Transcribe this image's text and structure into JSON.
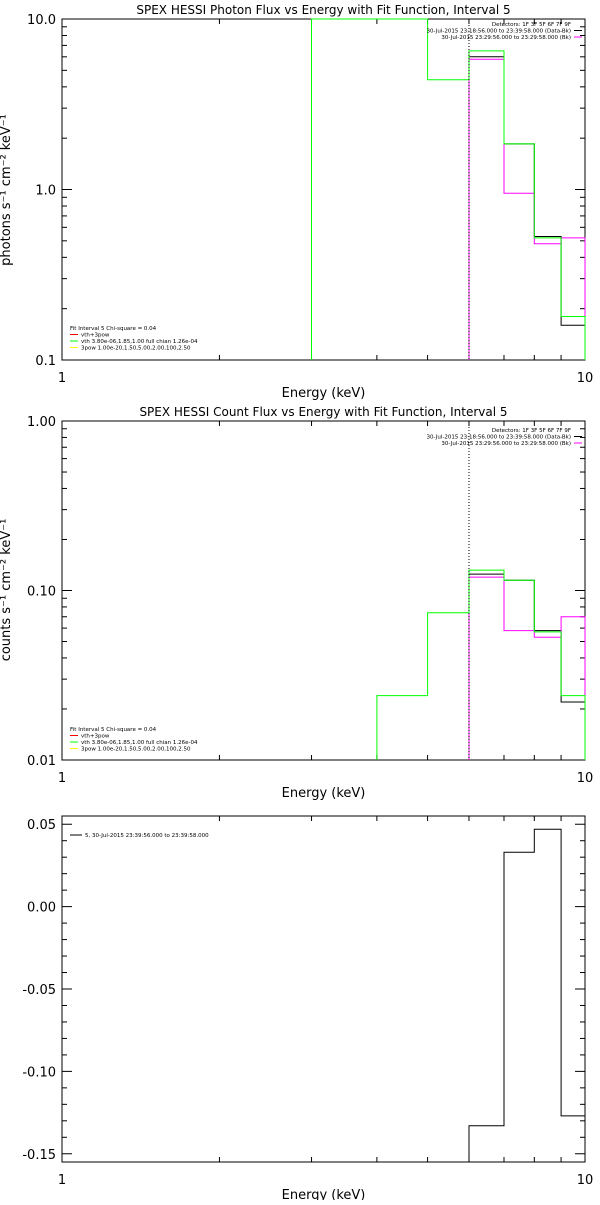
{
  "chart_data": [
    {
      "type": "line",
      "title": "SPEX HESSI Photon Flux vs Energy with Fit Function, Interval 5",
      "xlabel": "Energy (keV)",
      "ylabel": "photons s⁻¹ cm⁻² keV⁻¹",
      "xscale": "log",
      "yscale": "log",
      "xlim": [
        1,
        10
      ],
      "ylim": [
        0.1,
        10
      ],
      "x_ticks": [
        "1",
        "10"
      ],
      "y_ticks": [
        {
          "v": 0.1,
          "label": "0.1"
        },
        {
          "v": 1,
          "label": "1.0"
        },
        {
          "v": 10,
          "label": "10.0"
        }
      ],
      "vline": 6.0,
      "legend_top": [
        {
          "text": "Detectors: 1F 3F 5F 6F 7F 9F",
          "color": null
        },
        {
          "text": "30-Jul-2015 23:18:56.000 to 23:39:58.000 (Data-Bk)",
          "color": "#000000"
        },
        {
          "text": "30-Jul-2015 23:29:56.000 to 23:29:58.000 (Bk)",
          "color": "#ff00ff"
        }
      ],
      "legend_bottom": [
        {
          "text": "Fit Interval 5   Chi-square = 0.04",
          "color": null
        },
        {
          "text": "vth+3pow",
          "color": "#ff0000"
        },
        {
          "text": "vth 3.80e-06,1.85,1.00  full chian 1.26e-04",
          "color": "#00ff00"
        },
        {
          "text": "3pow 1.00e-20,1.50,5.00,2.00,100,2.50",
          "color": "#ffff00"
        }
      ],
      "series": [
        {
          "color": "#000000",
          "edges": [
            6.0,
            7.0,
            8.0,
            9.0,
            10.0
          ],
          "values": [
            6.0,
            1.85,
            0.53,
            0.16
          ]
        },
        {
          "color": "#ff00ff",
          "edges": [
            6.0,
            7.0,
            8.0,
            9.0,
            10.0
          ],
          "values": [
            5.8,
            0.95,
            0.48,
            0.52
          ]
        },
        {
          "color": "#00ff00",
          "edges": [
            3.0,
            5.0,
            6.0,
            7.0,
            8.0,
            9.0,
            10.0
          ],
          "values": [
            10.0,
            4.4,
            6.5,
            1.85,
            0.52,
            0.18
          ]
        }
      ]
    },
    {
      "type": "line",
      "title": "SPEX HESSI Count Flux vs Energy with Fit Function, Interval 5",
      "xlabel": "Energy (keV)",
      "ylabel": "counts s⁻¹ cm⁻² keV⁻¹",
      "xscale": "log",
      "yscale": "log",
      "xlim": [
        1,
        10
      ],
      "ylim": [
        0.01,
        1
      ],
      "x_ticks": [
        "1",
        "10"
      ],
      "y_ticks": [
        {
          "v": 0.01,
          "label": "0.01"
        },
        {
          "v": 0.1,
          "label": "0.10"
        },
        {
          "v": 1,
          "label": "1.00"
        }
      ],
      "vline": 6.0,
      "legend_top": [
        {
          "text": "Detectors: 1F 3F 5F 6F 7F 9F",
          "color": null
        },
        {
          "text": "30-Jul-2015 23:18:56.000 to 23:39:58.000 (Data-Bk)",
          "color": "#000000"
        },
        {
          "text": "30-Jul-2015 23:29:56.000 to 23:29:58.000 (Bk)",
          "color": "#ff00ff"
        }
      ],
      "legend_bottom": [
        {
          "text": "Fit Interval 5   Chi-square = 0.04",
          "color": null
        },
        {
          "text": "vth+3pow",
          "color": "#ff0000"
        },
        {
          "text": "vth 3.80e-06,1.85,1.00  full chian 1.26e-04",
          "color": "#00ff00"
        },
        {
          "text": "3pow 1.00e-20,1.50,5.00,2.00,100,2.50",
          "color": "#ffff00"
        }
      ],
      "series": [
        {
          "color": "#000000",
          "edges": [
            6.0,
            7.0,
            8.0,
            9.0,
            10.0
          ],
          "values": [
            0.125,
            0.115,
            0.058,
            0.022
          ]
        },
        {
          "color": "#ff00ff",
          "edges": [
            6.0,
            7.0,
            8.0,
            9.0,
            10.0
          ],
          "values": [
            0.12,
            0.058,
            0.053,
            0.07
          ]
        },
        {
          "color": "#00ff00",
          "edges": [
            4.0,
            5.0,
            6.0,
            7.0,
            8.0,
            9.0,
            10.0
          ],
          "values": [
            0.024,
            0.074,
            0.132,
            0.115,
            0.057,
            0.024
          ]
        }
      ]
    },
    {
      "type": "line",
      "title": "",
      "xlabel": "Energy (keV)",
      "ylabel": "",
      "xscale": "log",
      "yscale": "linear",
      "xlim": [
        1,
        10
      ],
      "ylim": [
        -0.155,
        0.055
      ],
      "x_ticks": [
        "1",
        "10"
      ],
      "y_ticks": [
        {
          "v": -0.15,
          "label": "-0.15"
        },
        {
          "v": -0.1,
          "label": "-0.10"
        },
        {
          "v": -0.05,
          "label": "-0.05"
        },
        {
          "v": 0.0,
          "label": "0.00"
        },
        {
          "v": 0.05,
          "label": "0.05"
        }
      ],
      "vline": null,
      "legend_top": [],
      "legend_left": [
        {
          "text": "5, 30-Jul-2015 23:39:56.000 to 23:39:58.000",
          "color": "#000000"
        }
      ],
      "legend_bottom": [],
      "series": [
        {
          "color": "#000000",
          "edges": [
            6.0,
            7.0,
            8.0,
            9.0,
            10.0
          ],
          "values": [
            -0.133,
            0.033,
            0.047,
            -0.127
          ]
        }
      ]
    }
  ]
}
